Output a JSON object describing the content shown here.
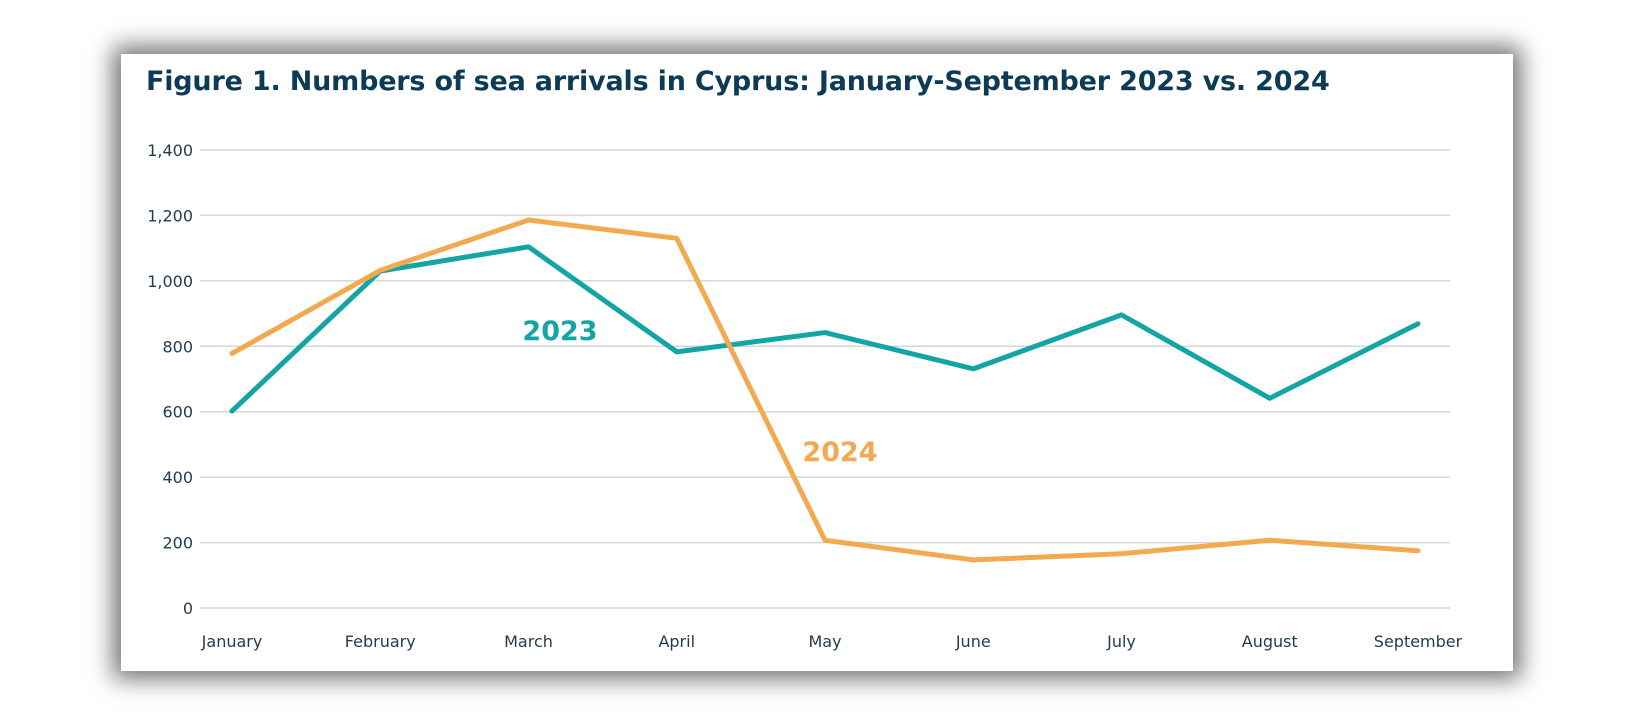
{
  "chart_data": {
    "type": "line",
    "title": "Figure 1. Numbers of sea arrivals in Cyprus: January-September 2023 vs. 2024",
    "xlabel": "",
    "ylabel": "",
    "categories": [
      "January",
      "February",
      "March",
      "April",
      "May",
      "June",
      "July",
      "August",
      "September"
    ],
    "ylim": [
      0,
      1400
    ],
    "yticks": [
      0,
      200,
      400,
      600,
      800,
      1000,
      1200,
      1400
    ],
    "ytick_labels": [
      "0",
      "200",
      "400",
      "600",
      "800",
      "1,000",
      "1,200",
      "1,400"
    ],
    "grid": true,
    "series": [
      {
        "name": "2023",
        "color": "#13a4a6",
        "values": [
          602,
          1030,
          1104,
          783,
          842,
          731,
          896,
          641,
          869
        ]
      },
      {
        "name": "2024",
        "color": "#f2a950",
        "values": [
          778,
          1032,
          1186,
          1130,
          207,
          147,
          166,
          207,
          175
        ]
      }
    ]
  }
}
